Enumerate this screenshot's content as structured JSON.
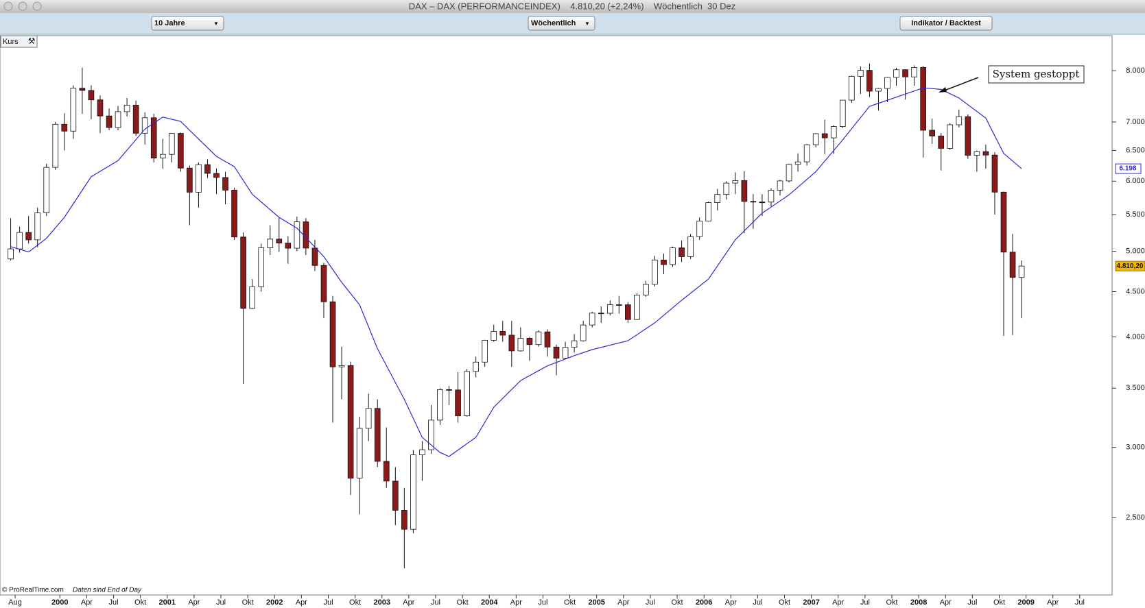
{
  "window": {
    "title": "DAX – DAX (PERFORMANCEINDEX)    4.810,20 (+2,24%)    Wöchentlich  30 Dez",
    "period": "10 Jahre",
    "interval": "Wöchentlich",
    "button": "Indikator / Backtest",
    "panel_label": "Kurs",
    "copyright": "© ProRealTime.com",
    "data_note": "Daten sind End of Day"
  },
  "chart_data": {
    "type": "candlestick",
    "x": [
      "1999-07",
      "1999-08",
      "1999-09",
      "1999-10",
      "1999-11",
      "1999-12",
      "2000-01",
      "2000-02",
      "2000-03",
      "2000-04",
      "2000-05",
      "2000-06",
      "2000-07",
      "2000-08",
      "2000-09",
      "2000-10",
      "2000-11",
      "2000-12",
      "2001-01",
      "2001-02",
      "2001-03",
      "2001-04",
      "2001-05",
      "2001-06",
      "2001-07",
      "2001-08",
      "2001-09",
      "2001-10",
      "2001-11",
      "2001-12",
      "2002-01",
      "2002-02",
      "2002-03",
      "2002-04",
      "2002-05",
      "2002-06",
      "2002-07",
      "2002-08",
      "2002-09",
      "2002-10",
      "2002-11",
      "2002-12",
      "2003-01",
      "2003-02",
      "2003-03",
      "2003-04",
      "2003-05",
      "2003-06",
      "2003-07",
      "2003-08",
      "2003-09",
      "2003-10",
      "2003-11",
      "2003-12",
      "2004-01",
      "2004-02",
      "2004-03",
      "2004-04",
      "2004-05",
      "2004-06",
      "2004-07",
      "2004-08",
      "2004-09",
      "2004-10",
      "2004-11",
      "2004-12",
      "2005-01",
      "2005-02",
      "2005-03",
      "2005-04",
      "2005-05",
      "2005-06",
      "2005-07",
      "2005-08",
      "2005-09",
      "2005-10",
      "2005-11",
      "2005-12",
      "2006-01",
      "2006-02",
      "2006-03",
      "2006-04",
      "2006-05",
      "2006-06",
      "2006-07",
      "2006-08",
      "2006-09",
      "2006-10",
      "2006-11",
      "2006-12",
      "2007-01",
      "2007-02",
      "2007-03",
      "2007-04",
      "2007-05",
      "2007-06",
      "2007-07",
      "2007-08",
      "2007-09",
      "2007-10",
      "2007-11",
      "2007-12",
      "2008-01",
      "2008-02",
      "2008-03",
      "2008-04",
      "2008-05",
      "2008-06",
      "2008-07",
      "2008-08",
      "2008-09",
      "2008-10",
      "2008-11",
      "2008-12"
    ],
    "open": [
      4900,
      5030,
      5250,
      5150,
      5525,
      6220,
      6958,
      6835,
      7644,
      7599,
      7414,
      7110,
      6899,
      7190,
      7312,
      6798,
      7077,
      6372,
      6434,
      6795,
      6208,
      5830,
      6264,
      6123,
      6058,
      5861,
      5188,
      4308,
      4559,
      5045,
      5160,
      5107,
      5039,
      5397,
      5041,
      4818,
      4383,
      3700,
      3712,
      2769,
      3153,
      3321,
      2893,
      2748,
      2547,
      2424,
      2942,
      2982,
      3221,
      3487,
      3484,
      3257,
      3656,
      3746,
      3965,
      4058,
      4018,
      3857,
      3986,
      3921,
      4053,
      3896,
      3785,
      3893,
      3960,
      4126,
      4256,
      4254,
      4350,
      4349,
      4185,
      4461,
      4587,
      4887,
      4829,
      5044,
      4929,
      5193,
      5408,
      5674,
      5796,
      5970,
      6009,
      5692,
      5683,
      5682,
      5860,
      6004,
      6269,
      6309,
      6597,
      6789,
      6716,
      6917,
      7409,
      7883,
      8007,
      7584,
      7638,
      7862,
      8020,
      7871,
      8067,
      6851,
      6748,
      6535,
      6949,
      7097,
      6418,
      6480,
      6422,
      5831,
      4988,
      4670
    ],
    "high": [
      5450,
      5330,
      5480,
      5600,
      6280,
      7000,
      7160,
      7700,
      8065,
      7700,
      7500,
      7250,
      7300,
      7450,
      7400,
      7180,
      7150,
      6700,
      6800,
      6810,
      6250,
      6300,
      6350,
      6200,
      6150,
      5900,
      5250,
      4650,
      5100,
      5350,
      5460,
      5200,
      5470,
      5450,
      5150,
      4850,
      4450,
      3900,
      3750,
      3250,
      3450,
      3400,
      3160,
      2850,
      2700,
      2980,
      3050,
      3350,
      3500,
      3520,
      3650,
      3680,
      3800,
      3970,
      4130,
      4170,
      4170,
      4100,
      4000,
      4070,
      4080,
      3920,
      3950,
      4030,
      4170,
      4270,
      4330,
      4400,
      4450,
      4380,
      4480,
      4630,
      4940,
      4970,
      5060,
      5140,
      5230,
      5460,
      5690,
      5880,
      6000,
      6140,
      6160,
      5800,
      5800,
      5890,
      6020,
      6280,
      6450,
      6610,
      6800,
      7040,
      6940,
      7410,
      7900,
      8090,
      8150,
      7650,
      7870,
      8060,
      8030,
      8110,
      8100,
      7060,
      6800,
      6980,
      7230,
      7140,
      6500,
      6600,
      6470,
      5840,
      5230,
      4880
    ],
    "low": [
      4880,
      4980,
      5100,
      5050,
      5480,
      6180,
      6500,
      6700,
      7150,
      7050,
      6800,
      6850,
      6850,
      7100,
      6750,
      6600,
      6300,
      6200,
      6300,
      6150,
      5350,
      5600,
      6050,
      5800,
      5650,
      5150,
      3540,
      4300,
      4500,
      4950,
      4990,
      4840,
      5000,
      4950,
      4750,
      4200,
      3200,
      3400,
      2650,
      2520,
      3050,
      2850,
      2700,
      2450,
      2190,
      2400,
      2750,
      2950,
      3180,
      3350,
      3200,
      3250,
      3600,
      3700,
      3950,
      3950,
      3700,
      3850,
      3760,
      3900,
      3800,
      3620,
      3780,
      3840,
      3950,
      4100,
      4150,
      4230,
      4250,
      4150,
      4180,
      4440,
      4560,
      4710,
      4800,
      4860,
      4900,
      5150,
      5400,
      5560,
      5720,
      5800,
      5240,
      5300,
      5480,
      5620,
      5780,
      5980,
      6150,
      6250,
      6550,
      6440,
      6440,
      6890,
      7360,
      7530,
      7470,
      7210,
      7370,
      7690,
      7420,
      7690,
      6380,
      6610,
      6170,
      6510,
      6900,
      6360,
      6150,
      6200,
      5500,
      4010,
      4020,
      4200
    ],
    "close": [
      5030,
      5250,
      5150,
      5525,
      6220,
      6958,
      6835,
      7644,
      7599,
      7414,
      7110,
      6899,
      7190,
      7312,
      6798,
      7077,
      6372,
      6434,
      6795,
      6208,
      5830,
      6264,
      6123,
      6058,
      5861,
      5188,
      4308,
      4559,
      5045,
      5160,
      5107,
      5039,
      5397,
      5041,
      4818,
      4383,
      3700,
      3712,
      2769,
      3153,
      3321,
      2893,
      2748,
      2547,
      2424,
      2942,
      2982,
      3221,
      3487,
      3484,
      3257,
      3656,
      3746,
      3965,
      4058,
      4018,
      3857,
      3986,
      3921,
      4053,
      3896,
      3785,
      3893,
      3960,
      4126,
      4256,
      4254,
      4350,
      4349,
      4185,
      4461,
      4587,
      4887,
      4829,
      5044,
      4929,
      5193,
      5408,
      5674,
      5796,
      5970,
      6009,
      5692,
      5683,
      5682,
      5860,
      6004,
      6269,
      6309,
      6597,
      6789,
      6716,
      6917,
      7409,
      7883,
      8007,
      7584,
      7638,
      7862,
      8020,
      7871,
      8067,
      6851,
      6748,
      6535,
      6949,
      7097,
      6418,
      6480,
      6422,
      5831,
      4988,
      4670,
      4810.2
    ],
    "last_label": "4.810,20",
    "up_color": "#ffffff",
    "down_color": "#8b1a1a",
    "wick_color": "#111111",
    "moving_average": {
      "color": "#2a2ad8",
      "x": [
        "1999-07",
        "1999-09",
        "1999-11",
        "2000-01",
        "2000-04",
        "2000-07",
        "2000-10",
        "2000-12",
        "2001-02",
        "2001-03",
        "2001-06",
        "2001-08",
        "2001-10",
        "2002-01",
        "2002-03",
        "2002-06",
        "2002-08",
        "2002-10",
        "2002-12",
        "2003-03",
        "2003-05",
        "2003-07",
        "2003-08",
        "2003-11",
        "2004-01",
        "2004-04",
        "2004-07",
        "2004-10",
        "2004-12",
        "2005-04",
        "2005-07",
        "2005-10",
        "2006-01",
        "2006-04",
        "2006-07",
        "2006-10",
        "2007-01",
        "2007-04",
        "2007-07",
        "2008-01",
        "2008-03",
        "2008-05",
        "2008-08",
        "2008-10",
        "2008-12"
      ],
      "values": [
        5060,
        4990,
        5170,
        5460,
        6070,
        6330,
        6870,
        7090,
        7010,
        6850,
        6400,
        6230,
        5800,
        5460,
        5310,
        4930,
        4610,
        4350,
        3880,
        3400,
        3080,
        2960,
        2930,
        3080,
        3330,
        3570,
        3710,
        3810,
        3870,
        3960,
        4150,
        4400,
        4650,
        5150,
        5520,
        5790,
        6150,
        6680,
        7290,
        7650,
        7620,
        7450,
        7070,
        6450,
        6198
      ],
      "last_label": "6.198"
    },
    "annotation": "System gestoppt",
    "log_scale": true,
    "ylim": [
      2043,
      8748
    ],
    "yticks": [
      {
        "value": 2500,
        "label": "2.500"
      },
      {
        "value": 3000,
        "label": "3.000"
      },
      {
        "value": 3500,
        "label": "3.500"
      },
      {
        "value": 4000,
        "label": "4.000"
      },
      {
        "value": 4500,
        "label": "4.500"
      },
      {
        "value": 5000,
        "label": "5.000"
      },
      {
        "value": 5500,
        "label": "5.500"
      },
      {
        "value": 6000,
        "label": "6.000"
      },
      {
        "value": 6500,
        "label": "6.500"
      },
      {
        "value": 7000,
        "label": "7.000"
      },
      {
        "value": 8000,
        "label": "8.000"
      }
    ],
    "xticks": [
      {
        "value": "1999-08",
        "label": "Aug"
      },
      {
        "value": "2000-01",
        "label": "2000"
      },
      {
        "value": "2000-04",
        "label": "Apr"
      },
      {
        "value": "2000-07",
        "label": "Jul"
      },
      {
        "value": "2000-10",
        "label": "Okt"
      },
      {
        "value": "2001-01",
        "label": "2001"
      },
      {
        "value": "2001-04",
        "label": "Apr"
      },
      {
        "value": "2001-07",
        "label": "Jul"
      },
      {
        "value": "2001-10",
        "label": "Okt"
      },
      {
        "value": "2002-01",
        "label": "2002"
      },
      {
        "value": "2002-04",
        "label": "Apr"
      },
      {
        "value": "2002-07",
        "label": "Jul"
      },
      {
        "value": "2002-10",
        "label": "Okt"
      },
      {
        "value": "2003-01",
        "label": "2003"
      },
      {
        "value": "2003-04",
        "label": "Apr"
      },
      {
        "value": "2003-07",
        "label": "Jul"
      },
      {
        "value": "2003-10",
        "label": "Okt"
      },
      {
        "value": "2004-01",
        "label": "2004"
      },
      {
        "value": "2004-04",
        "label": "Apr"
      },
      {
        "value": "2004-07",
        "label": "Jul"
      },
      {
        "value": "2004-10",
        "label": "Okt"
      },
      {
        "value": "2005-01",
        "label": "2005"
      },
      {
        "value": "2005-04",
        "label": "Apr"
      },
      {
        "value": "2005-07",
        "label": "Jul"
      },
      {
        "value": "2005-10",
        "label": "Okt"
      },
      {
        "value": "2006-01",
        "label": "2006"
      },
      {
        "value": "2006-04",
        "label": "Apr"
      },
      {
        "value": "2006-07",
        "label": "Jul"
      },
      {
        "value": "2006-10",
        "label": "Okt"
      },
      {
        "value": "2007-01",
        "label": "2007"
      },
      {
        "value": "2007-04",
        "label": "Apr"
      },
      {
        "value": "2007-07",
        "label": "Jul"
      },
      {
        "value": "2007-10",
        "label": "Okt"
      },
      {
        "value": "2008-01",
        "label": "2008"
      },
      {
        "value": "2008-04",
        "label": "Apr"
      },
      {
        "value": "2008-07",
        "label": "Jul"
      },
      {
        "value": "2008-10",
        "label": "Okt"
      },
      {
        "value": "2009-01",
        "label": "2009"
      },
      {
        "value": "2009-04",
        "label": "Apr"
      },
      {
        "value": "2009-07",
        "label": "Jul"
      }
    ],
    "grid": false
  }
}
